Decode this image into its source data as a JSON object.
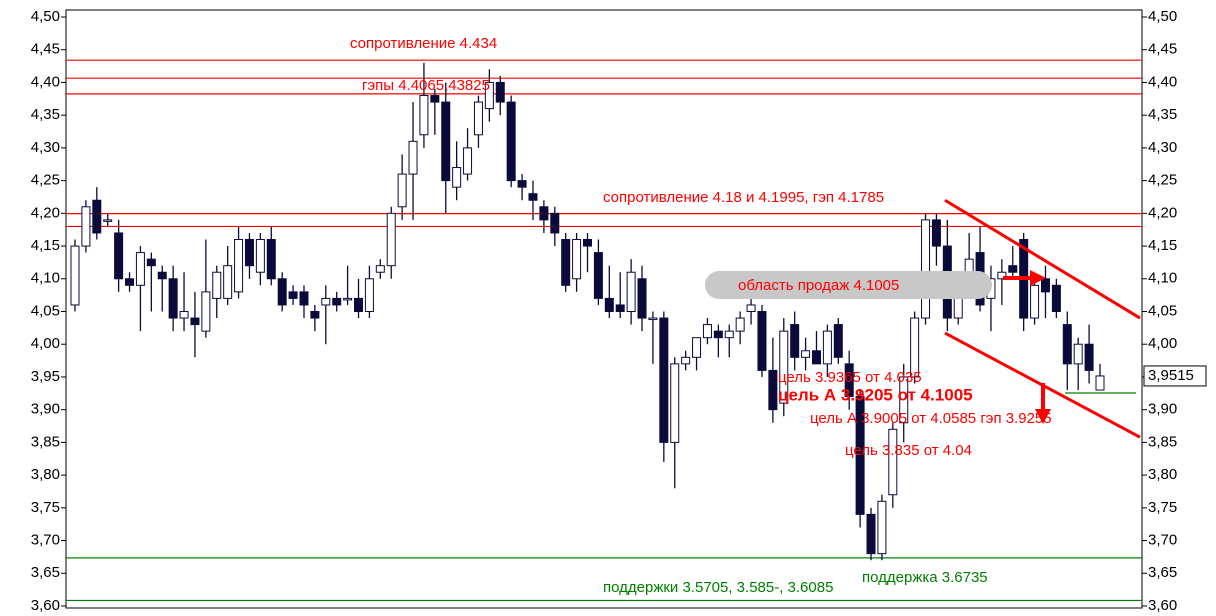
{
  "chart_data": {
    "type": "candlestick",
    "ylim": [
      3.6,
      4.5
    ],
    "yticks": [
      {
        "value": 3.6,
        "label": "3,60"
      },
      {
        "value": 3.65,
        "label": "3,65"
      },
      {
        "value": 3.7,
        "label": "3,70"
      },
      {
        "value": 3.75,
        "label": "3,75"
      },
      {
        "value": 3.8,
        "label": "3,80"
      },
      {
        "value": 3.85,
        "label": "3,85"
      },
      {
        "value": 3.9,
        "label": "3,90"
      },
      {
        "value": 3.95,
        "label": "3,95"
      },
      {
        "value": 4.0,
        "label": "4,00"
      },
      {
        "value": 4.05,
        "label": "4,05"
      },
      {
        "value": 4.1,
        "label": "4,10"
      },
      {
        "value": 4.15,
        "label": "4,15"
      },
      {
        "value": 4.2,
        "label": "4,20"
      },
      {
        "value": 4.25,
        "label": "4,25"
      },
      {
        "value": 4.3,
        "label": "4,30"
      },
      {
        "value": 4.35,
        "label": "4,35"
      },
      {
        "value": 4.4,
        "label": "4,40"
      },
      {
        "value": 4.45,
        "label": "4,45"
      },
      {
        "value": 4.5,
        "label": "4,50"
      }
    ],
    "up_color": "#ffffff",
    "down_color": "#0b0b3b",
    "open": [
      4.06,
      4.15,
      4.22,
      4.19,
      4.17,
      4.1,
      4.09,
      4.13,
      4.11,
      4.1,
      4.04,
      4.04,
      4.02,
      4.07,
      4.07,
      4.08,
      4.16,
      4.11,
      4.16,
      4.1,
      4.08,
      4.08,
      4.05,
      4.06,
      4.07,
      4.07,
      4.07,
      4.05,
      4.11,
      4.12,
      4.21,
      4.26,
      4.32,
      4.38,
      4.37,
      4.24,
      4.26,
      4.32,
      4.36,
      4.4,
      4.37,
      4.25,
      4.23,
      4.21,
      4.2,
      4.16,
      4.1,
      4.16,
      4.14,
      4.07,
      4.06,
      4.05,
      4.1,
      4.04,
      4.04,
      3.85,
      3.97,
      3.98,
      4.01,
      4.02,
      4.01,
      4.02,
      4.05,
      4.05,
      3.96,
      3.91,
      4.03,
      3.98,
      3.99,
      3.97,
      4.03,
      3.97,
      3.92,
      3.74,
      3.68,
      3.77,
      3.88,
      3.95,
      4.04,
      4.19,
      4.15,
      4.04,
      4.09,
      4.14,
      4.07,
      4.1,
      4.12,
      4.16,
      4.04,
      4.1,
      4.09,
      4.03,
      3.97,
      4.0,
      3.93
    ],
    "high": [
      4.16,
      4.22,
      4.24,
      4.2,
      4.19,
      4.11,
      4.15,
      4.14,
      4.12,
      4.12,
      4.11,
      4.08,
      4.16,
      4.12,
      4.15,
      4.18,
      4.17,
      4.17,
      4.18,
      4.11,
      4.09,
      4.09,
      4.06,
      4.09,
      4.08,
      4.12,
      4.1,
      4.12,
      4.13,
      4.21,
      4.29,
      4.37,
      4.43,
      4.39,
      4.4,
      4.31,
      4.33,
      4.38,
      4.42,
      4.41,
      4.38,
      4.26,
      4.25,
      4.22,
      4.21,
      4.17,
      4.17,
      4.17,
      4.16,
      4.12,
      4.11,
      4.13,
      4.12,
      4.05,
      4.05,
      3.98,
      3.99,
      4.01,
      4.04,
      4.03,
      4.03,
      4.05,
      4.07,
      4.06,
      4.01,
      4.04,
      4.05,
      4.01,
      4.02,
      4.03,
      4.04,
      3.99,
      3.93,
      3.75,
      3.77,
      3.88,
      3.97,
      4.05,
      4.2,
      4.2,
      4.19,
      4.1,
      4.17,
      4.18,
      4.12,
      4.13,
      4.15,
      4.17,
      4.1,
      4.12,
      4.1,
      4.05,
      4.01,
      4.03,
      3.97
    ],
    "low": [
      4.05,
      4.14,
      4.16,
      4.18,
      4.08,
      4.08,
      4.02,
      4.05,
      4.05,
      4.02,
      4.02,
      3.98,
      4.01,
      4.04,
      4.06,
      4.07,
      4.1,
      4.09,
      4.09,
      4.05,
      4.06,
      4.04,
      4.02,
      4.0,
      4.05,
      4.06,
      4.04,
      4.04,
      4.1,
      4.1,
      4.19,
      4.19,
      4.3,
      4.32,
      4.2,
      4.22,
      4.25,
      4.3,
      4.34,
      4.35,
      4.24,
      4.22,
      4.19,
      4.17,
      4.15,
      4.08,
      4.08,
      4.11,
      4.06,
      4.04,
      4.04,
      4.03,
      4.02,
      3.97,
      3.82,
      3.78,
      3.96,
      3.96,
      4.0,
      3.98,
      3.98,
      4.0,
      4.03,
      3.95,
      3.88,
      3.89,
      3.96,
      3.96,
      3.97,
      3.95,
      3.97,
      3.9,
      3.72,
      3.67,
      3.67,
      3.75,
      3.85,
      3.94,
      4.03,
      4.12,
      4.02,
      4.03,
      4.08,
      4.05,
      4.02,
      4.06,
      4.1,
      4.02,
      4.03,
      4.04,
      4.04,
      3.93,
      3.93,
      3.94,
      3.93
    ],
    "close": [
      4.15,
      4.21,
      4.17,
      4.19,
      4.1,
      4.09,
      4.14,
      4.12,
      4.1,
      4.04,
      4.05,
      4.03,
      4.08,
      4.11,
      4.12,
      4.16,
      4.12,
      4.16,
      4.1,
      4.06,
      4.07,
      4.06,
      4.04,
      4.07,
      4.06,
      4.07,
      4.05,
      4.1,
      4.12,
      4.2,
      4.26,
      4.31,
      4.38,
      4.37,
      4.25,
      4.27,
      4.3,
      4.37,
      4.4,
      4.37,
      4.25,
      4.24,
      4.22,
      4.19,
      4.17,
      4.09,
      4.16,
      4.15,
      4.07,
      4.05,
      4.05,
      4.11,
      4.04,
      4.04,
      3.85,
      3.97,
      3.98,
      4.01,
      4.03,
      4.01,
      4.02,
      4.04,
      4.06,
      3.96,
      3.9,
      4.02,
      3.98,
      3.99,
      3.97,
      4.02,
      3.98,
      3.92,
      3.74,
      3.68,
      3.76,
      3.87,
      3.95,
      4.04,
      4.19,
      4.15,
      4.04,
      4.08,
      4.13,
      4.06,
      4.1,
      4.11,
      4.11,
      4.04,
      4.09,
      4.08,
      4.05,
      3.97,
      4.0,
      3.96,
      3.9515
    ],
    "last_price": {
      "value": 3.9515,
      "label": "3,9515"
    },
    "levels": [
      {
        "value": 4.434,
        "color": "#ff0000"
      },
      {
        "value": 4.4065,
        "color": "#ff0000"
      },
      {
        "value": 4.3825,
        "color": "#ff0000"
      },
      {
        "value": 4.1995,
        "color": "#ff0000"
      },
      {
        "value": 4.18,
        "color": "#ff0000"
      },
      {
        "value": 3.6735,
        "color": "#008000"
      },
      {
        "value": 3.6085,
        "color": "#008000"
      }
    ],
    "gap_line": {
      "value": 3.9255,
      "color": "#008000"
    },
    "trend_lines": [
      {
        "from": 4.22,
        "to": 4.04,
        "color": "#ff0000"
      },
      {
        "from": 4.017,
        "to": 3.858,
        "color": "#ff0000"
      }
    ],
    "annotations": [
      {
        "text": "сопротивление 4.434",
        "color": "#ff0000"
      },
      {
        "text": "гэпы 4.4065,43825",
        "color": "#ff0000"
      },
      {
        "text": "сопротивление 4.18 и 4.1995, гэп 4.1785",
        "color": "#ff0000"
      },
      {
        "text": "область продаж  4.1005",
        "color": "#ff0000"
      },
      {
        "text": "цель 3.9365 от 4.035",
        "color": "#ff0000"
      },
      {
        "text": "цель А 3.9205 от 4.1005",
        "color": "#ff0000"
      },
      {
        "text": "цель А 3.9005 от 4.0585 гэп 3.9255",
        "color": "#ff0000"
      },
      {
        "text": "цель 3.835 от 4.04",
        "color": "#ff0000"
      },
      {
        "text": "поддержка 3.6735",
        "color": "#008000"
      },
      {
        "text": "поддержки 3.5705, 3.585-, 3.6085",
        "color": "#008000"
      }
    ]
  }
}
